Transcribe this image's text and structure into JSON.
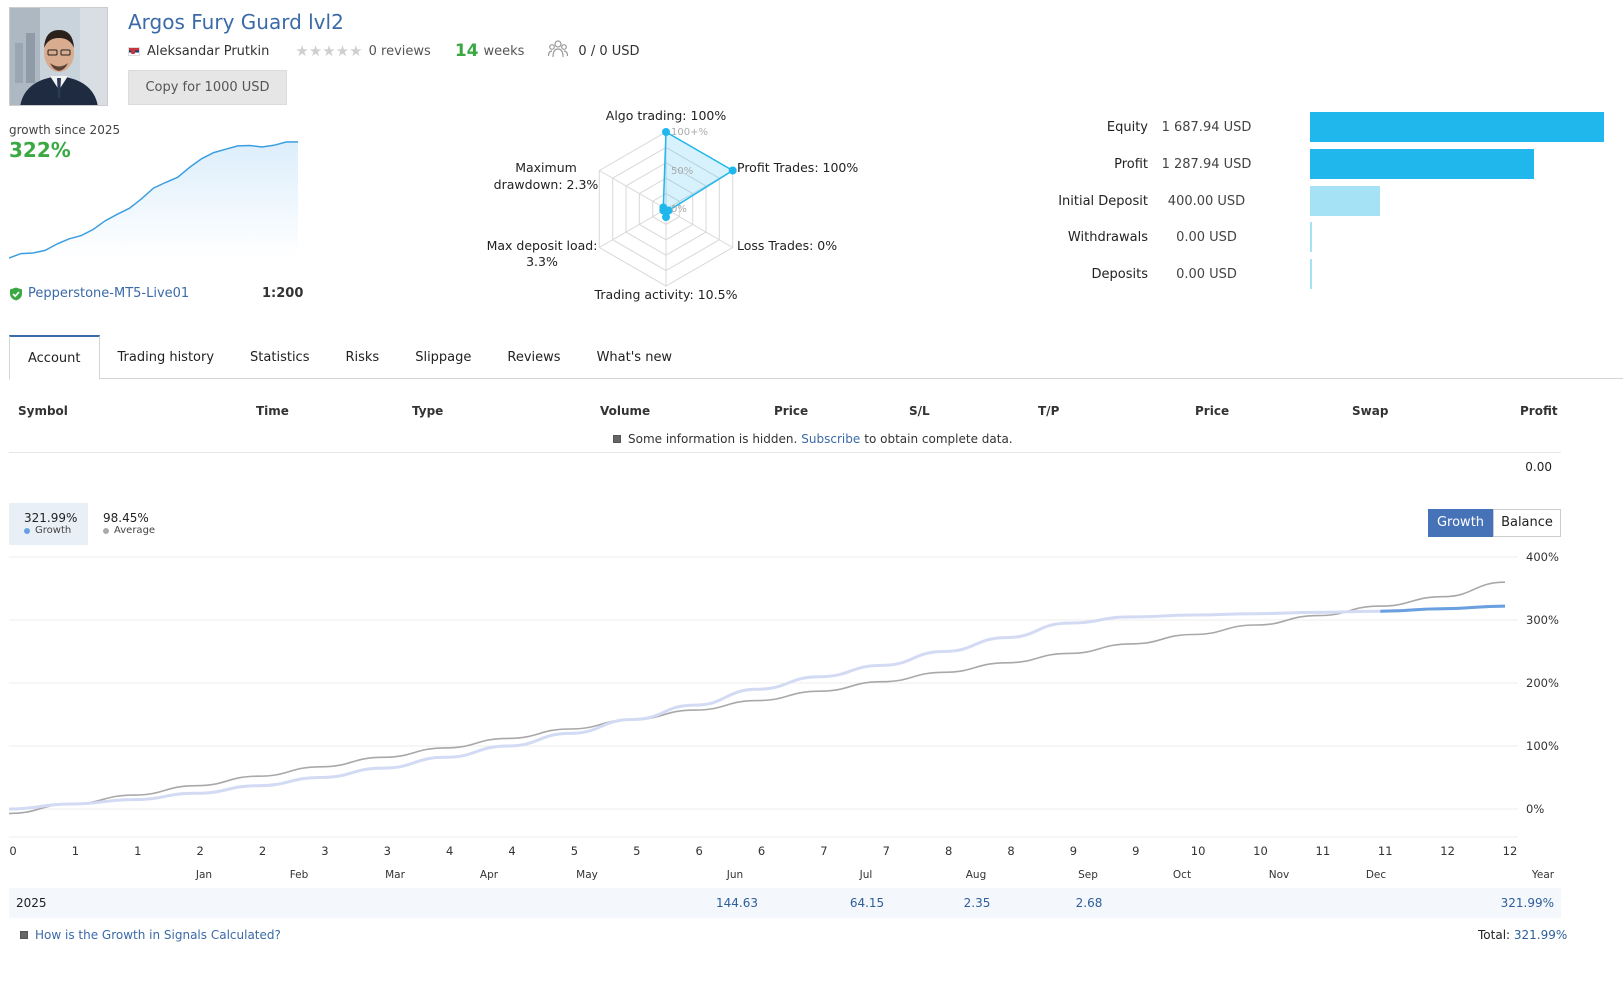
{
  "header": {
    "title": "Argos Fury Guard lvl2",
    "author": "Aleksandar Prutkin",
    "reviews": "0 reviews",
    "weeks_num": "14",
    "weeks_label": "weeks",
    "subscribers": "0 / 0 USD",
    "copy_button": "Copy for 1000 USD",
    "rating": 0
  },
  "growth_summary": {
    "since_label": "growth since 2025",
    "value": "322%",
    "broker": "Pepperstone-MT5-Live01",
    "leverage": "1:200"
  },
  "radar": {
    "labels": {
      "algo": "Algo trading: 100%",
      "profit": "Profit Trades: 100%",
      "loss": "Loss Trades: 0%",
      "activity": "Trading activity: 10.5%",
      "deposit_load_1": "Max deposit load:",
      "deposit_load_2": "3.3%",
      "drawdown_1": "Maximum",
      "drawdown_2": "drawdown: 2.3%"
    },
    "scale": {
      "r100": "100+%",
      "r50": "50%",
      "r0": "0%"
    },
    "values": [
      100,
      100,
      0,
      10.5,
      3.3,
      2.3
    ]
  },
  "balances": [
    {
      "label": "Equity",
      "value": "1 687.94 USD",
      "amount": 1687.94,
      "color": "#1fb7ec"
    },
    {
      "label": "Profit",
      "value": "1 287.94 USD",
      "amount": 1287.94,
      "color": "#1fb7ec"
    },
    {
      "label": "Initial Deposit",
      "value": "400.00 USD",
      "amount": 400.0,
      "color": "#a6e2f6"
    },
    {
      "label": "Withdrawals",
      "value": "0.00 USD",
      "amount": 0,
      "color": "#a6e2f6"
    },
    {
      "label": "Deposits",
      "value": "0.00 USD",
      "amount": 0,
      "color": "#a6e2f6"
    }
  ],
  "tabs": [
    "Account",
    "Trading history",
    "Statistics",
    "Risks",
    "Slippage",
    "Reviews",
    "What's new"
  ],
  "table": {
    "columns": [
      "Symbol",
      "Time",
      "Type",
      "Volume",
      "Price",
      "S/L",
      "T/P",
      "Price",
      "Swap",
      "Profit"
    ],
    "hidden_note_1": "Some information is hidden.",
    "hidden_note_link": "Subscribe",
    "hidden_note_2": "to obtain complete data.",
    "profit_total": "0.00"
  },
  "chart_legend": {
    "growth_value": "321.99%",
    "growth_label": "Growth",
    "average_value": "98.45%",
    "average_label": "Average",
    "btn_growth": "Growth",
    "btn_balance": "Balance"
  },
  "chart_data": {
    "type": "line",
    "y_ticks": [
      "400%",
      "300%",
      "200%",
      "100%",
      "0%"
    ],
    "ylim": [
      0,
      400
    ],
    "x_tick_labels": [
      "0",
      "1",
      "1",
      "2",
      "2",
      "3",
      "3",
      "4",
      "4",
      "5",
      "5",
      "6",
      "6",
      "7",
      "7",
      "8",
      "8",
      "9",
      "9",
      "10",
      "10",
      "11",
      "11",
      "12",
      "12"
    ],
    "month_labels": [
      "Jan",
      "Feb",
      "Mar",
      "Apr",
      "May",
      "Jun",
      "Jul",
      "Aug",
      "Sep",
      "Oct",
      "Nov",
      "Dec",
      "Year"
    ],
    "series": [
      {
        "values": [
          0,
          8,
          15,
          25,
          37,
          50,
          65,
          82,
          100,
          120,
          142,
          165,
          190,
          210,
          228,
          250,
          272,
          295,
          305,
          308,
          310,
          312,
          314,
          318,
          322
        ]
      },
      {
        "values": [
          -7,
          8,
          22,
          37,
          52,
          67,
          82,
          97,
          112,
          127,
          142,
          157,
          172,
          187,
          202,
          217,
          232,
          247,
          262,
          277,
          292,
          307,
          322,
          337,
          360
        ]
      }
    ]
  },
  "yearly": {
    "year": "2025",
    "months": [
      {
        "col": 5,
        "value": "144.63"
      },
      {
        "col": 6,
        "value": "64.15"
      },
      {
        "col": 7,
        "value": "2.35"
      },
      {
        "col": 8,
        "value": "2.68"
      }
    ],
    "year_total": "321.99%",
    "how_link": "How is the Growth in Signals Calculated?",
    "total_label": "Total:",
    "total_value": "321.99%"
  }
}
